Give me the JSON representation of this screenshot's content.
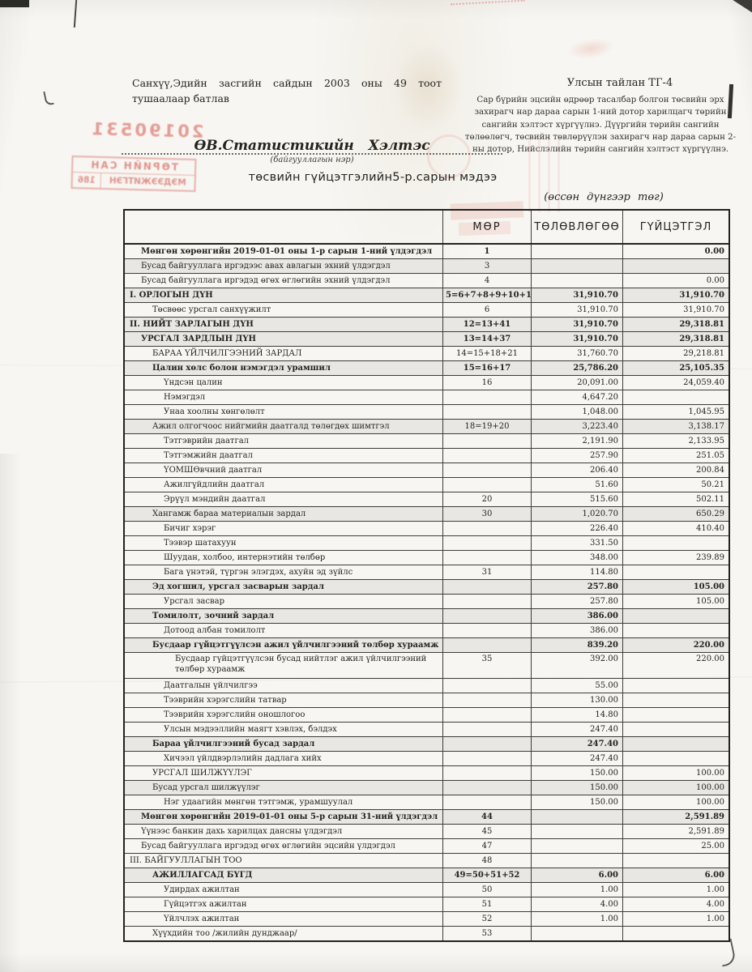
{
  "page": {
    "approval": "Санхүү,Эдийн засгийн сайдын 2003 оны 49 тоот тушаалаар батлав",
    "report_code": "Улсын тайлан ТГ-4",
    "instructions": "Сар бүрийн эцсийн өдрөөр тасалбар болгон төсвийн эрх захирагч нар дараа сарын 1-ний дотор харилцагч төрийн сангийн  хэлтэст хүргүүлнэ. Дүүргийн төрийн сангийн төлөөлөгч, төсвийн төвлөрүүлэн захирагч нар дараа сарын 2-ны дотор, Нийслэлийн төрийн сангийн хэлтэст хүргүүлнэ.",
    "org_name": "ӨВ.Статистикийн Хэлтэс",
    "org_caption": "(байгууллагын нэр)",
    "title": "төсвийн гүйцэтгэлийн5-р.сарын мэдээ",
    "subtitle": "(өссөн дүнгээр төг)"
  },
  "stamps": {
    "date": "20190531",
    "line1": "ТӨРИЙН САН",
    "line2": "МЭДЭЭЖИТГЭН",
    "number": "186",
    "color": "#d4524a"
  },
  "table": {
    "columns": {
      "label": "",
      "mor": "МӨР",
      "plan": "ТӨЛӨВЛӨГӨӨ",
      "actual": "ГҮЙЦЭТГЭЛ"
    },
    "rows": [
      {
        "l": "Мөнгөн хөрөнгийн 2019-01-01 оны 1-р сарын 1-ний үлдэгдэл",
        "m": "1",
        "p": "",
        "a": "0.00",
        "i": 1,
        "b": 1,
        "s": 0
      },
      {
        "l": "Бусад байгууллага иргэдээс авах авлагын эхний үлдэгдэл",
        "m": "3",
        "p": "",
        "a": "",
        "i": 1,
        "b": 0,
        "s": 1
      },
      {
        "l": "Бусад байгууллага иргэдэд өгөх өглөгийн эхний үлдэгдэл",
        "m": "4",
        "p": "",
        "a": "0.00",
        "i": 1,
        "b": 0,
        "s": 0
      },
      {
        "l": "I. ОРЛОГЫН ДҮН",
        "m": "5=6+7+8+9+10+11",
        "p": "31,910.70",
        "a": "31,910.70",
        "i": 0,
        "b": 1,
        "s": 1
      },
      {
        "l": "Төсвөөс урсгал санхүүжилт",
        "m": "6",
        "p": "31,910.70",
        "a": "31,910.70",
        "i": 2,
        "b": 0,
        "s": 0
      },
      {
        "l": "II. НИЙТ ЗАРЛАГЫН ДҮН",
        "m": "12=13+41",
        "p": "31,910.70",
        "a": "29,318.81",
        "i": 0,
        "b": 1,
        "s": 1
      },
      {
        "l": "УРСГАЛ ЗАРДЛЫН ДҮН",
        "m": "13=14+37",
        "p": "31,910.70",
        "a": "29,318.81",
        "i": 1,
        "b": 1,
        "s": 1
      },
      {
        "l": "БАРАА ҮЙЛЧИЛГЭЭНИЙ ЗАРДАЛ",
        "m": "14=15+18+21",
        "p": "31,760.70",
        "a": "29,218.81",
        "i": 2,
        "b": 0,
        "s": 0
      },
      {
        "l": "Цалин хөлс болон нэмэгдэл урамшил",
        "m": "15=16+17",
        "p": "25,786.20",
        "a": "25,105.35",
        "i": 2,
        "b": 1,
        "s": 1
      },
      {
        "l": "Үндсэн цалин",
        "m": "16",
        "p": "20,091.00",
        "a": "24,059.40",
        "i": 3,
        "b": 0,
        "s": 0
      },
      {
        "l": "Нэмэгдэл",
        "m": "",
        "p": "4,647.20",
        "a": "",
        "i": 3,
        "b": 0,
        "s": 0
      },
      {
        "l": "Унаа хоолны хөнгөлөлт",
        "m": "",
        "p": "1,048.00",
        "a": "1,045.95",
        "i": 3,
        "b": 0,
        "s": 0
      },
      {
        "l": "Ажил олгогчоос нийгмийн даатгалд төлөгдөх шимтгэл",
        "m": "18=19+20",
        "p": "3,223.40",
        "a": "3,138.17",
        "i": 2,
        "b": 0,
        "s": 1
      },
      {
        "l": "Тэтгэврийн даатгал",
        "m": "",
        "p": "2,191.90",
        "a": "2,133.95",
        "i": 3,
        "b": 0,
        "s": 0
      },
      {
        "l": "Тэтгэмжийн даатгал",
        "m": "",
        "p": "257.90",
        "a": "251.05",
        "i": 3,
        "b": 0,
        "s": 0
      },
      {
        "l": "ҮОМШӨвчний даатгал",
        "m": "",
        "p": "206.40",
        "a": "200.84",
        "i": 3,
        "b": 0,
        "s": 0
      },
      {
        "l": "Ажилгүйдлийн даатгал",
        "m": "",
        "p": "51.60",
        "a": "50.21",
        "i": 3,
        "b": 0,
        "s": 0
      },
      {
        "l": "Эрүүл мэндийн даатгал",
        "m": "20",
        "p": "515.60",
        "a": "502.11",
        "i": 3,
        "b": 0,
        "s": 0
      },
      {
        "l": "Хангамж бараа материалын зардал",
        "m": "30",
        "p": "1,020.70",
        "a": "650.29",
        "i": 2,
        "b": 0,
        "s": 1
      },
      {
        "l": "Бичиг хэрэг",
        "m": "",
        "p": "226.40",
        "a": "410.40",
        "i": 3,
        "b": 0,
        "s": 0
      },
      {
        "l": "Тээвэр шатахуун",
        "m": "",
        "p": "331.50",
        "a": "",
        "i": 3,
        "b": 0,
        "s": 0
      },
      {
        "l": "Шуудан, холбоо, интернэтийн төлбөр",
        "m": "",
        "p": "348.00",
        "a": "239.89",
        "i": 3,
        "b": 0,
        "s": 0
      },
      {
        "l": "Бага үнэтэй, түргэн элэгдэх, ахуйн эд зүйлс",
        "m": "31",
        "p": "114.80",
        "a": "",
        "i": 3,
        "b": 0,
        "s": 0
      },
      {
        "l": "Эд хогшил, урсгал засварын зардал",
        "m": "",
        "p": "257.80",
        "a": "105.00",
        "i": 2,
        "b": 1,
        "s": 1
      },
      {
        "l": "Урсгал засвар",
        "m": "",
        "p": "257.80",
        "a": "105.00",
        "i": 3,
        "b": 0,
        "s": 0
      },
      {
        "l": "Томилолт, зочний зардал",
        "m": "",
        "p": "386.00",
        "a": "",
        "i": 2,
        "b": 1,
        "s": 1
      },
      {
        "l": "Дотоод албан томилолт",
        "m": "",
        "p": "386.00",
        "a": "",
        "i": 3,
        "b": 0,
        "s": 0
      },
      {
        "l": "Бусдаар гүйцэтгүүлсэн ажил үйлчилгээний төлбөр хураамж",
        "m": "",
        "p": "839.20",
        "a": "220.00",
        "i": 2,
        "b": 1,
        "s": 1
      },
      {
        "l": "Бусдаар гүйцэтгүүлсэн бусад нийтлэг ажил үйлчилгээний төлбөр хураамж",
        "m": "35",
        "p": "392.00",
        "a": "220.00",
        "i": 4,
        "b": 0,
        "s": 0,
        "w": 1
      },
      {
        "l": "Даатгалын үйлчилгээ",
        "m": "",
        "p": "55.00",
        "a": "",
        "i": 3,
        "b": 0,
        "s": 0
      },
      {
        "l": "Тээврийн хэрэгслийн татвар",
        "m": "",
        "p": "130.00",
        "a": "",
        "i": 3,
        "b": 0,
        "s": 0
      },
      {
        "l": "Тээврийн хэрэгслийн оношлогоо",
        "m": "",
        "p": "14.80",
        "a": "",
        "i": 3,
        "b": 0,
        "s": 0
      },
      {
        "l": "Улсын мэдээллийн маягт хэвлэх, бэлдэх",
        "m": "",
        "p": "247.40",
        "a": "",
        "i": 3,
        "b": 0,
        "s": 0
      },
      {
        "l": "Бараа үйлчилгээний бусад зардал",
        "m": "",
        "p": "247.40",
        "a": "",
        "i": 2,
        "b": 1,
        "s": 1
      },
      {
        "l": "Хичээл үйлдвэрлэлийн дадлага хийх",
        "m": "",
        "p": "247.40",
        "a": "",
        "i": 3,
        "b": 0,
        "s": 0
      },
      {
        "l": "УРСГАЛ ШИЛЖҮҮЛЭГ",
        "m": "",
        "p": "150.00",
        "a": "100.00",
        "i": 2,
        "b": 0,
        "s": 0
      },
      {
        "l": "Бусад урсгал шилжүүлэг",
        "m": "",
        "p": "150.00",
        "a": "100.00",
        "i": 2,
        "b": 0,
        "s": 1
      },
      {
        "l": "Нэг удаагийн мөнгөн тэтгэмж, урамшуулал",
        "m": "",
        "p": "150.00",
        "a": "100.00",
        "i": 3,
        "b": 0,
        "s": 0
      },
      {
        "l": "Мөнгөн хөрөнгийн 2019-01-01 оны 5-р сарын 31-ний үлдэгдэл",
        "m": "44",
        "p": "",
        "a": "2,591.89",
        "i": 1,
        "b": 1,
        "s": 1
      },
      {
        "l": "Үүнээс банкин дахь харилцах дансны үлдэгдэл",
        "m": "45",
        "p": "",
        "a": "2,591.89",
        "i": 1,
        "b": 0,
        "s": 0
      },
      {
        "l": "Бусад байгууллага иргэдэд өгөх өглөгийн эцсийн үлдэгдэл",
        "m": "47",
        "p": "",
        "a": "25.00",
        "i": 1,
        "b": 0,
        "s": 0
      },
      {
        "l": "III. БАЙГУУЛЛАГЫН ТОО",
        "m": "48",
        "p": "",
        "a": "",
        "i": 0,
        "b": 0,
        "s": 0
      },
      {
        "l": "АЖИЛЛАГСАД БҮГД",
        "m": "49=50+51+52",
        "p": "6.00",
        "a": "6.00",
        "i": 2,
        "b": 1,
        "s": 1
      },
      {
        "l": "Удирдах ажилтан",
        "m": "50",
        "p": "1.00",
        "a": "1.00",
        "i": 3,
        "b": 0,
        "s": 0
      },
      {
        "l": "Гүйцэтгэх ажилтан",
        "m": "51",
        "p": "4.00",
        "a": "4.00",
        "i": 3,
        "b": 0,
        "s": 0
      },
      {
        "l": "Үйлчлэх ажилтан",
        "m": "52",
        "p": "1.00",
        "a": "1.00",
        "i": 3,
        "b": 0,
        "s": 0
      },
      {
        "l": "Хүүхдийн тоо /жилийн дунджаар/",
        "m": "53",
        "p": "",
        "a": "",
        "i": 2,
        "b": 0,
        "s": 0
      }
    ]
  }
}
